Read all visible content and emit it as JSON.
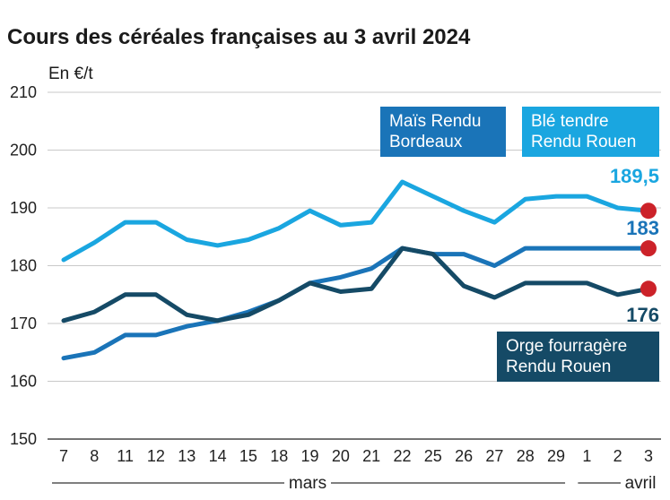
{
  "chart_data": {
    "type": "line",
    "title": "Cours des céréales françaises au 3 avril 2024",
    "ylabel": "En €/t",
    "ylim": [
      150,
      210
    ],
    "yticks": [
      150,
      160,
      170,
      180,
      190,
      200,
      210
    ],
    "grid": true,
    "categories": [
      "7",
      "8",
      "11",
      "12",
      "13",
      "14",
      "15",
      "18",
      "19",
      "20",
      "21",
      "22",
      "25",
      "26",
      "27",
      "28",
      "29",
      "1",
      "2",
      "3"
    ],
    "months": [
      {
        "label": "mars"
      },
      {
        "label": "avril"
      }
    ],
    "series": [
      {
        "name": "Blé tendre Rendu Rouen",
        "legend_lines": [
          "Blé tendre",
          "Rendu Rouen"
        ],
        "color": "#1aa6e0",
        "values": [
          181,
          184,
          187.5,
          187.5,
          184.5,
          183.5,
          184.5,
          186.5,
          189.5,
          187,
          187.5,
          194.5,
          192,
          189.5,
          187.5,
          191.5,
          192,
          192,
          190,
          189.5
        ],
        "end_label": "189,5"
      },
      {
        "name": "Maïs Rendu Bordeaux",
        "legend_lines": [
          "Maïs Rendu",
          "Bordeaux"
        ],
        "color": "#1a74b8",
        "values": [
          164,
          165,
          168,
          168,
          169.5,
          170.5,
          172,
          174,
          177,
          178,
          179.5,
          183,
          182,
          182,
          180,
          183,
          183,
          183,
          183,
          183
        ],
        "end_label": "183"
      },
      {
        "name": "Orge fourragère Rendu Rouen",
        "legend_lines": [
          "Orge fourragère",
          "Rendu Rouen"
        ],
        "color": "#154a66",
        "values": [
          170.5,
          172,
          175,
          175,
          171.5,
          170.5,
          171.5,
          174,
          177,
          175.5,
          176,
          183,
          182,
          176.5,
          174.5,
          177,
          177,
          177,
          175,
          176
        ],
        "end_label": "176"
      }
    ],
    "end_marker_color": "#cc2229"
  }
}
